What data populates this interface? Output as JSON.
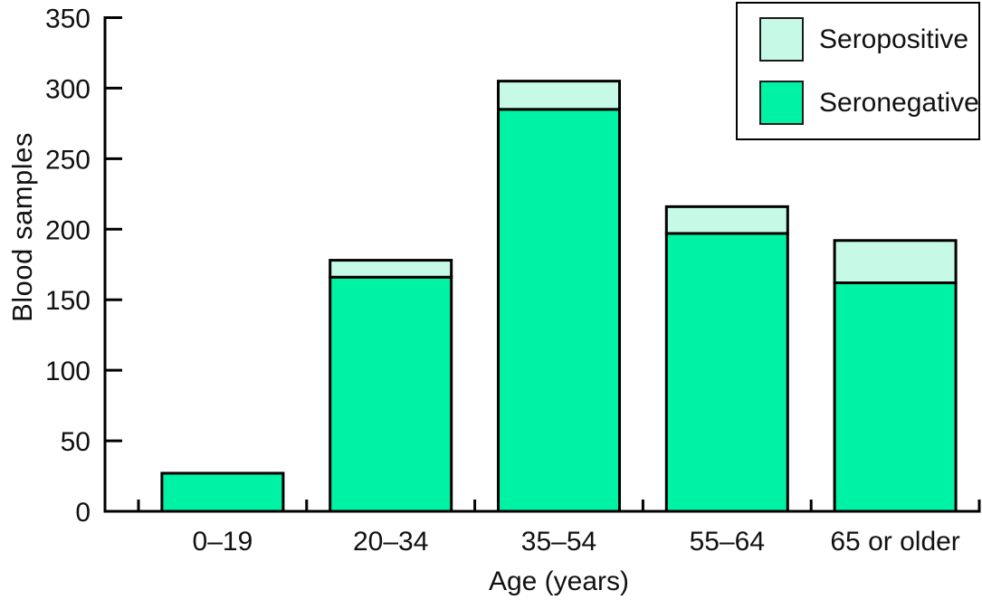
{
  "chart_data": {
    "type": "bar",
    "stacked": true,
    "title": "",
    "xlabel": "Age (years)",
    "ylabel": "Blood samples",
    "categories": [
      "0–19",
      "20–34",
      "35–54",
      "55–64",
      "65 or older"
    ],
    "series": [
      {
        "name": "Seronegative",
        "color": "#00f3a5",
        "values": [
          27,
          166,
          285,
          197,
          162
        ]
      },
      {
        "name": "Seropositive",
        "color": "#c6fae7",
        "values": [
          0,
          12,
          20,
          19,
          30
        ]
      }
    ],
    "stack_totals": [
      27,
      178,
      305,
      216,
      192
    ],
    "ylim": [
      0,
      350
    ],
    "yticks": [
      0,
      50,
      100,
      150,
      200,
      250,
      300,
      350
    ],
    "grid": false,
    "legend": {
      "position": "top-right",
      "entries": [
        "Seropositive",
        "Seronegative"
      ]
    },
    "bar_edge_color": "#000000",
    "axis_color": "#000000",
    "text_color": "#111111"
  }
}
